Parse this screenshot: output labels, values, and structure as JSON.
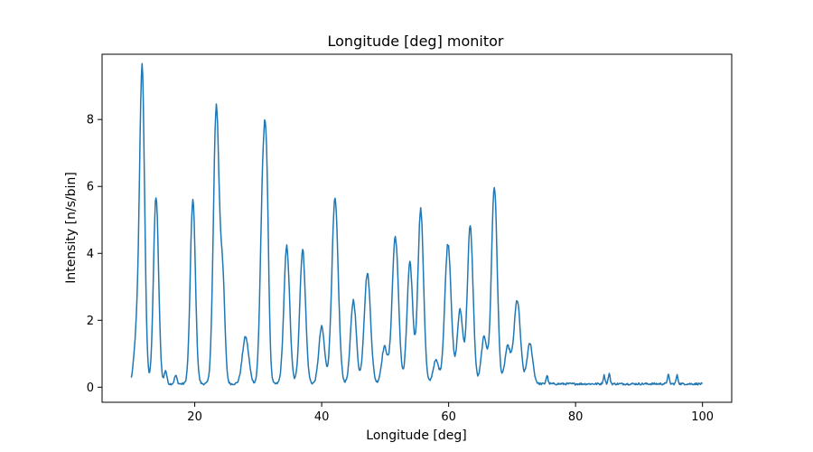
{
  "chart_data": {
    "type": "line",
    "title": "Longitude [deg] monitor",
    "xlabel": "Longitude [deg]",
    "ylabel": "Intensity [n/s/bin]",
    "xlim": [
      5.4,
      104.6
    ],
    "ylim": [
      -0.45,
      9.95
    ],
    "xticks": [
      20,
      40,
      60,
      80,
      100
    ],
    "yticks": [
      0,
      2,
      4,
      6,
      8
    ],
    "grid": false,
    "legend": "none",
    "series": [
      {
        "color": "#1f77b4",
        "baseline": 0.1,
        "x_range": [
          10,
          100
        ],
        "peaks": [
          {
            "x": 10.8,
            "y": 1.3,
            "w": 0.4
          },
          {
            "x": 11.7,
            "y": 9.4,
            "w": 0.4
          },
          {
            "x": 13.9,
            "y": 5.6,
            "w": 0.4
          },
          {
            "x": 15.4,
            "y": 0.4,
            "w": 0.2
          },
          {
            "x": 17.0,
            "y": 0.25,
            "w": 0.2
          },
          {
            "x": 19.7,
            "y": 5.5,
            "w": 0.4
          },
          {
            "x": 23.4,
            "y": 8.3,
            "w": 0.45
          },
          {
            "x": 24.4,
            "y": 3.0,
            "w": 0.35
          },
          {
            "x": 28.0,
            "y": 1.4,
            "w": 0.5
          },
          {
            "x": 30.7,
            "y": 5.3,
            "w": 0.4
          },
          {
            "x": 31.3,
            "y": 5.5,
            "w": 0.35
          },
          {
            "x": 34.5,
            "y": 4.1,
            "w": 0.45
          },
          {
            "x": 37.0,
            "y": 4.0,
            "w": 0.45
          },
          {
            "x": 40.0,
            "y": 1.7,
            "w": 0.45
          },
          {
            "x": 42.1,
            "y": 5.5,
            "w": 0.5
          },
          {
            "x": 45.0,
            "y": 2.5,
            "w": 0.45
          },
          {
            "x": 47.2,
            "y": 3.3,
            "w": 0.5
          },
          {
            "x": 49.9,
            "y": 1.1,
            "w": 0.45
          },
          {
            "x": 51.6,
            "y": 4.4,
            "w": 0.5
          },
          {
            "x": 53.9,
            "y": 3.6,
            "w": 0.45
          },
          {
            "x": 55.6,
            "y": 5.2,
            "w": 0.45
          },
          {
            "x": 58.0,
            "y": 0.7,
            "w": 0.45
          },
          {
            "x": 59.9,
            "y": 4.2,
            "w": 0.5
          },
          {
            "x": 61.8,
            "y": 2.2,
            "w": 0.45
          },
          {
            "x": 63.4,
            "y": 4.7,
            "w": 0.45
          },
          {
            "x": 65.6,
            "y": 1.4,
            "w": 0.45
          },
          {
            "x": 67.2,
            "y": 5.9,
            "w": 0.45
          },
          {
            "x": 69.3,
            "y": 1.1,
            "w": 0.45
          },
          {
            "x": 70.8,
            "y": 2.5,
            "w": 0.5
          },
          {
            "x": 72.8,
            "y": 1.2,
            "w": 0.45
          },
          {
            "x": 75.5,
            "y": 0.25,
            "w": 0.15
          },
          {
            "x": 84.5,
            "y": 0.25,
            "w": 0.15
          },
          {
            "x": 85.3,
            "y": 0.3,
            "w": 0.15
          },
          {
            "x": 94.6,
            "y": 0.27,
            "w": 0.15
          },
          {
            "x": 96.0,
            "y": 0.25,
            "w": 0.15
          }
        ]
      }
    ]
  }
}
